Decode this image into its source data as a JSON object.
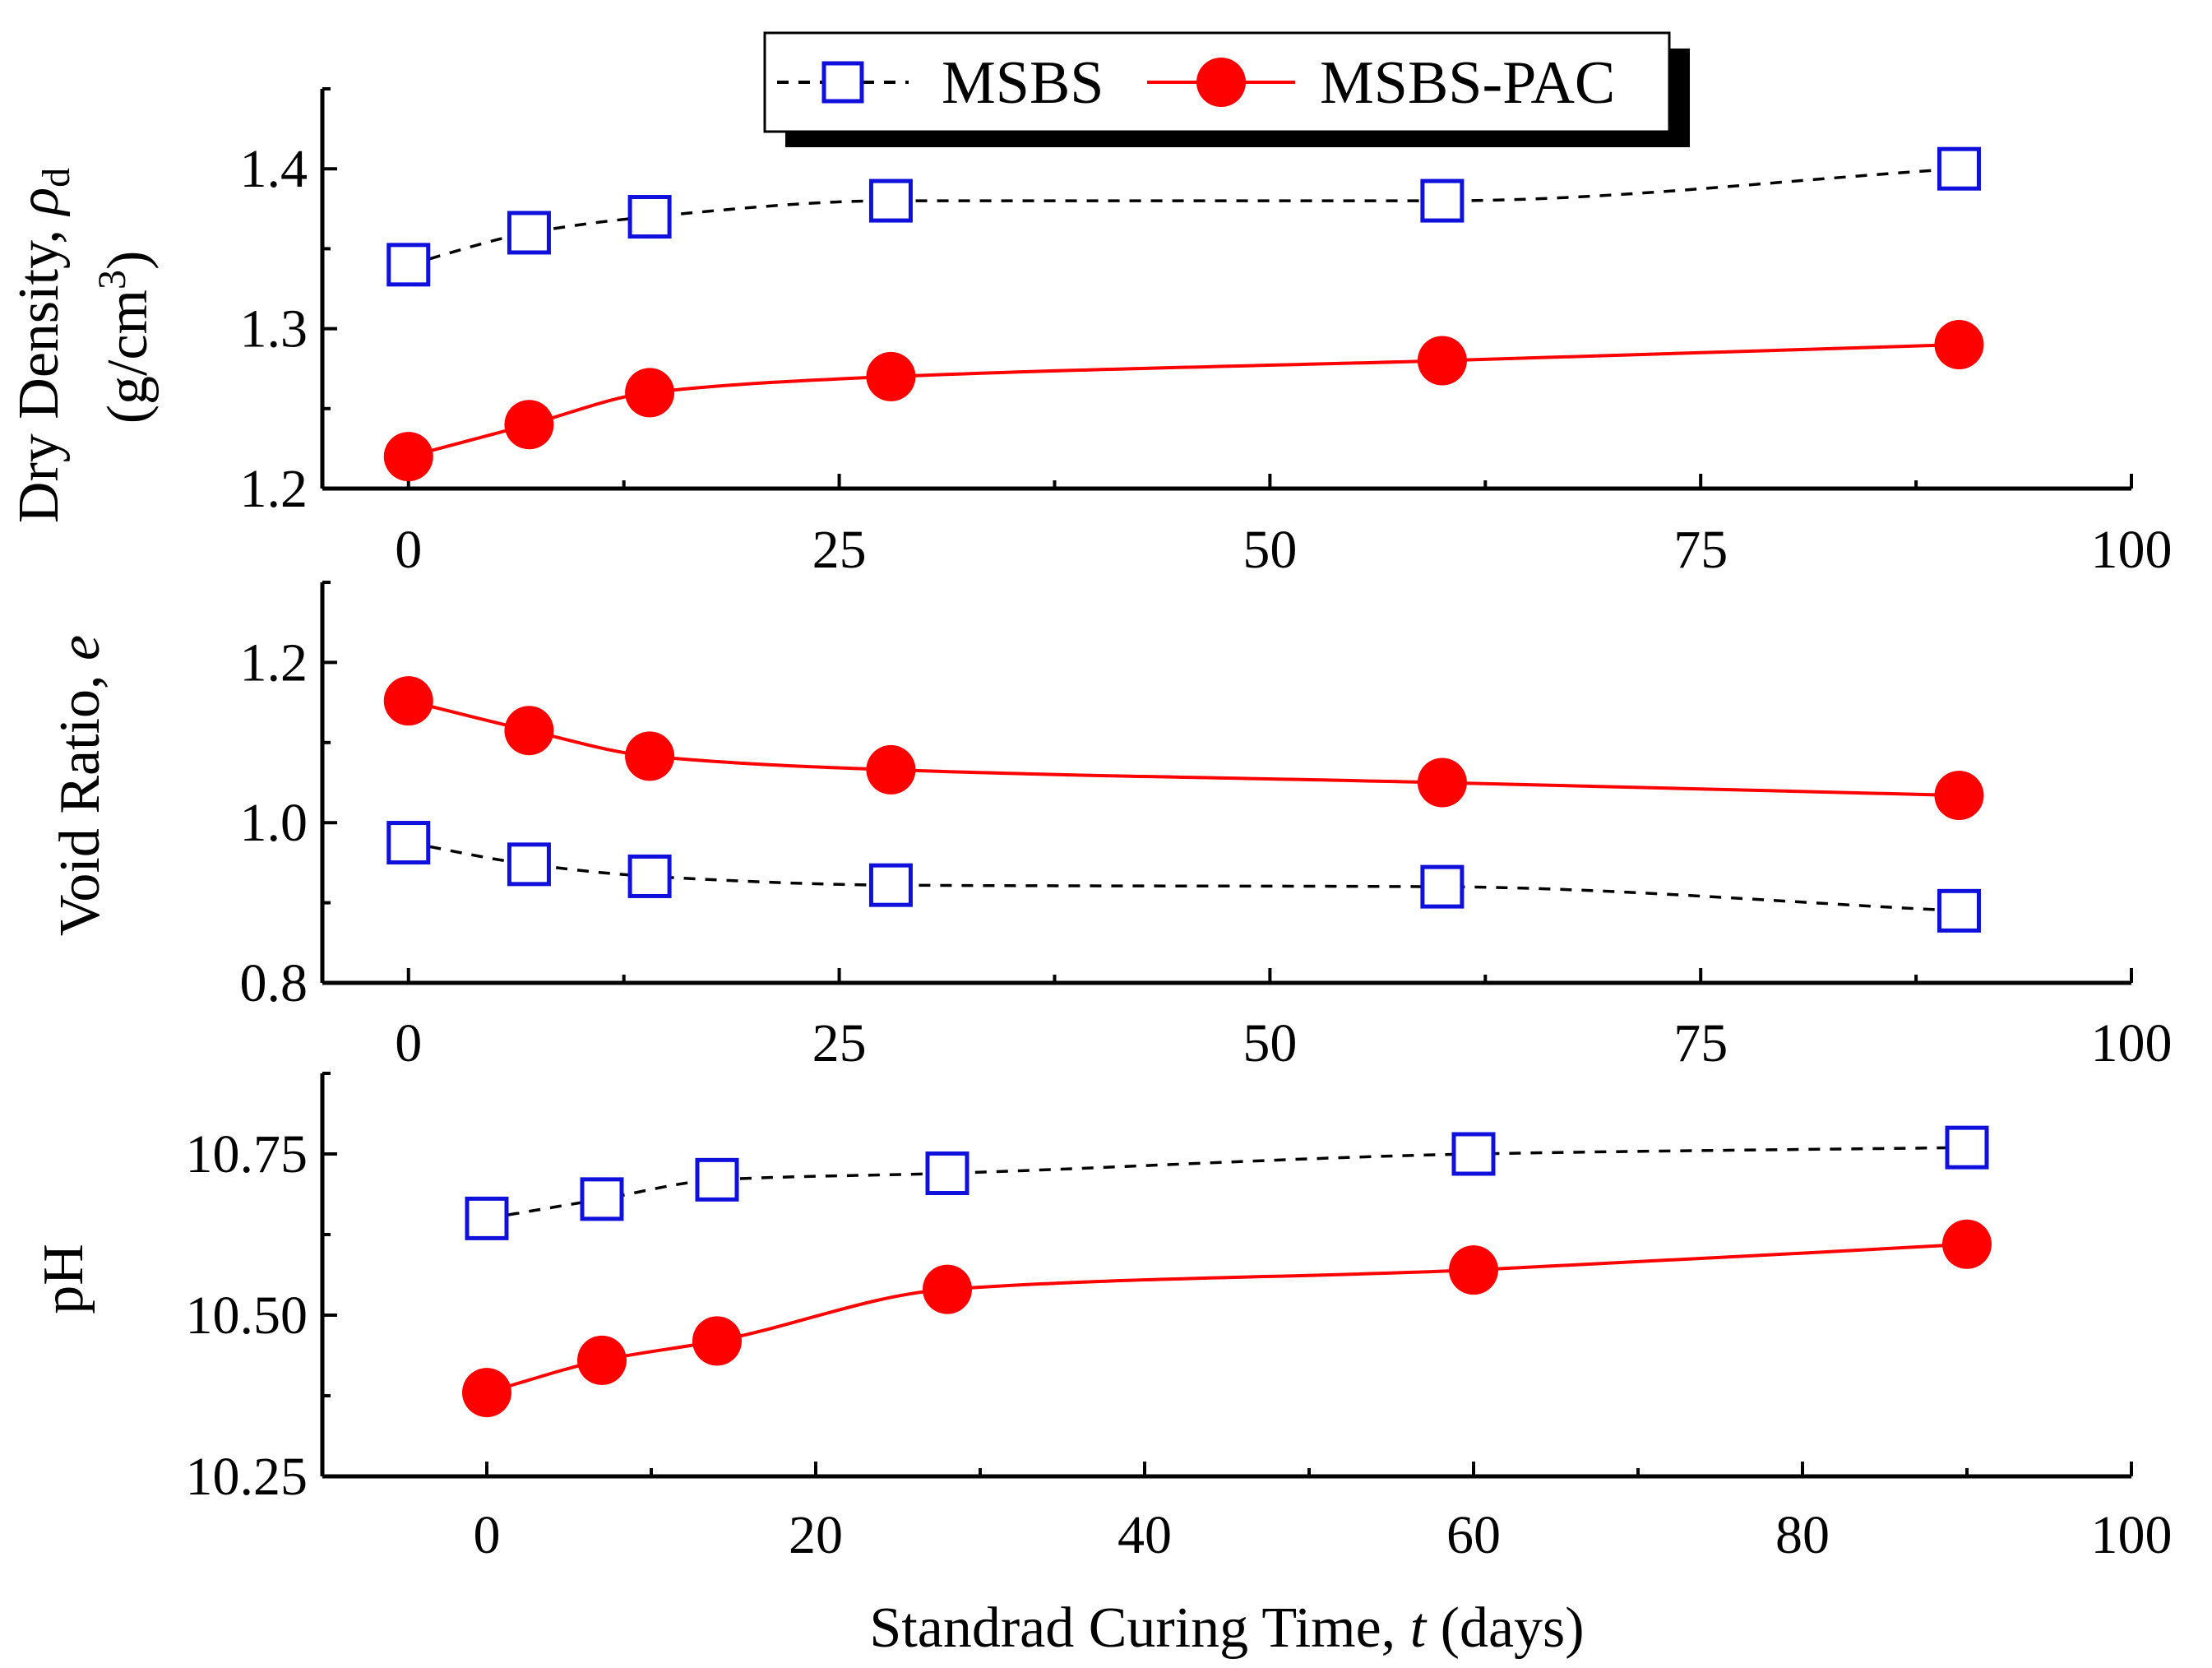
{
  "chart_data": [
    {
      "type": "line",
      "ylabel": "Dry Density, ρd (g/cm3)",
      "ylabel_parts": {
        "line1": "Dry Density, ",
        "symbol": "ρ",
        "subscript": "d",
        "line2_pre": "(g/cm",
        "superscript": "3",
        "line2_post": ")"
      },
      "xlim": [
        -5,
        100
      ],
      "ylim": [
        1.2,
        1.45
      ],
      "x_ticks": [
        0,
        25,
        50,
        75,
        100
      ],
      "y_ticks": [
        1.2,
        1.3,
        1.4
      ],
      "y_tick_labels": [
        "1.2",
        "1.3",
        "1.4"
      ],
      "grid": false,
      "series": [
        {
          "name": "MSBS",
          "x": [
            0,
            7,
            14,
            28,
            60,
            90
          ],
          "values": [
            1.34,
            1.36,
            1.37,
            1.38,
            1.38,
            1.4
          ]
        },
        {
          "name": "MSBS-PAC",
          "x": [
            0,
            7,
            14,
            28,
            60,
            90
          ],
          "values": [
            1.22,
            1.24,
            1.26,
            1.27,
            1.28,
            1.29
          ]
        }
      ]
    },
    {
      "type": "line",
      "ylabel": "Void Ratio, e",
      "ylabel_parts": {
        "text": "Void Ratio, ",
        "italic": "e"
      },
      "xlim": [
        -5,
        100
      ],
      "ylim": [
        0.8,
        1.3
      ],
      "x_ticks": [
        0,
        25,
        50,
        75,
        100
      ],
      "y_ticks": [
        0.8,
        1.0,
        1.2
      ],
      "y_tick_labels": [
        "0.8",
        "1.0",
        "1.2"
      ],
      "grid": false,
      "series": [
        {
          "name": "MSBS",
          "x": [
            0,
            7,
            14,
            28,
            60,
            90
          ],
          "values": [
            0.975,
            0.948,
            0.933,
            0.922,
            0.92,
            0.89
          ]
        },
        {
          "name": "MSBS-PAC",
          "x": [
            0,
            7,
            14,
            28,
            60,
            90
          ],
          "values": [
            1.152,
            1.115,
            1.083,
            1.066,
            1.05,
            1.034
          ]
        }
      ]
    },
    {
      "type": "line",
      "ylabel": "pH",
      "xlabel": "Standrad Curing Time, t (days)",
      "xlabel_parts": {
        "pre": "Standrad Curing Time, ",
        "italic": "t",
        "post": " (days)"
      },
      "xlim": [
        -10,
        100
      ],
      "ylim": [
        10.25,
        10.875
      ],
      "x_ticks": [
        0,
        20,
        40,
        60,
        80,
        100
      ],
      "y_ticks": [
        10.25,
        10.5,
        10.75
      ],
      "y_tick_labels": [
        "10.25",
        "10.50",
        "10.75"
      ],
      "grid": false,
      "series": [
        {
          "name": "MSBS",
          "x": [
            0,
            7,
            14,
            28,
            60,
            90
          ],
          "values": [
            10.65,
            10.68,
            10.71,
            10.72,
            10.75,
            10.76
          ]
        },
        {
          "name": "MSBS-PAC",
          "x": [
            0,
            7,
            14,
            28,
            60,
            90
          ],
          "values": [
            10.38,
            10.43,
            10.46,
            10.54,
            10.57,
            10.61
          ]
        }
      ]
    }
  ],
  "legend": {
    "placement": "top-center",
    "entries": [
      {
        "label": "MSBS",
        "marker": "open-square",
        "line": "dashed",
        "color": "#1010dd"
      },
      {
        "label": "MSBS-PAC",
        "marker": "filled-circle",
        "line": "solid",
        "color": "#ff0000"
      }
    ]
  },
  "colors": {
    "msbs_marker": "#1010dd",
    "msbs_line": "#000000",
    "pac_marker": "#ff0000",
    "pac_line": "#ff0000"
  }
}
